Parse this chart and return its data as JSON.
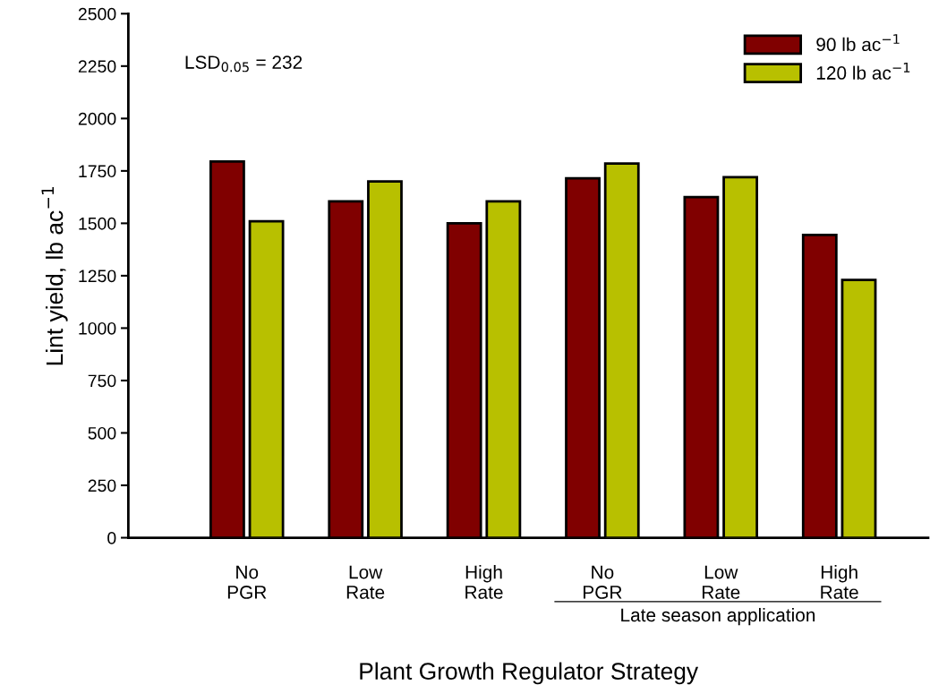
{
  "chart_data": {
    "type": "bar",
    "xlabel": "Plant Growth Regulator Strategy",
    "ylabel": "Lint yield, lb ac$^{−1}$",
    "categories": [
      "No\nPGR",
      "Low\nRate",
      "High\nRate",
      "No\nPGR",
      "Low\nRate",
      "High\nRate"
    ],
    "series": [
      {
        "name": "90 lb ac$^{−1}$",
        "color": "#800000",
        "values": [
          1795,
          1605,
          1500,
          1715,
          1625,
          1445
        ]
      },
      {
        "name": "120 lb ac$^{−1}$",
        "color": "#b8c000",
        "values": [
          1510,
          1700,
          1605,
          1785,
          1720,
          1230
        ]
      }
    ],
    "ylim": [
      0,
      2500
    ],
    "yticks": [
      0,
      250,
      500,
      750,
      1000,
      1250,
      1500,
      1750,
      2000,
      2250,
      2500
    ],
    "grid": false,
    "legend": "top right",
    "annotations": [
      "LSD$_{0.05}$ = 232",
      "Late season application"
    ]
  }
}
